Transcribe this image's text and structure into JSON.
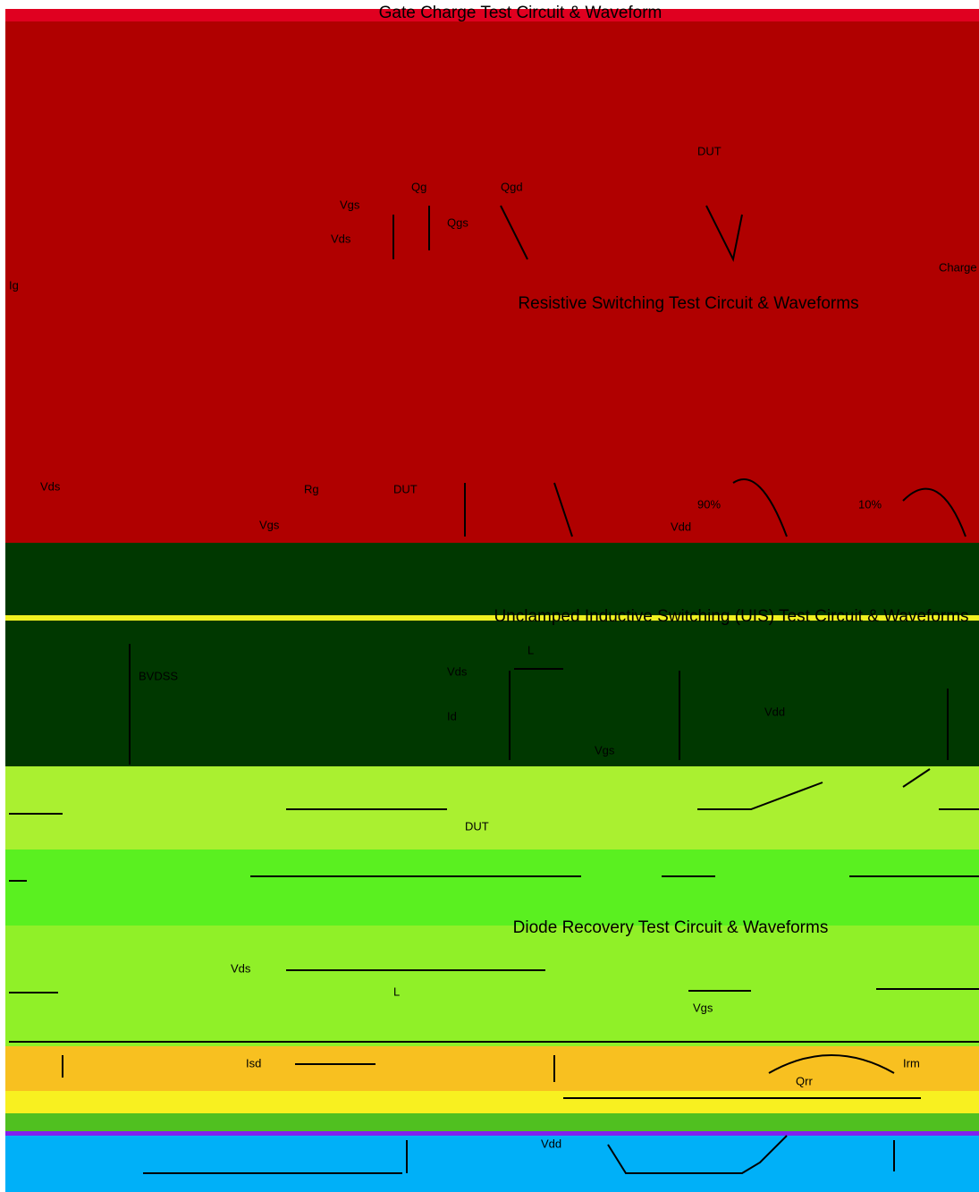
{
  "sections": [
    {
      "title": "Gate Charge Test Circuit & Waveform",
      "labels": [
        "Vgs",
        "Qg",
        "Qgs",
        "Qgd",
        "Vds",
        "DUT",
        "Ig",
        "Charge"
      ]
    },
    {
      "title": "Resistive Switching Test Circuit & Waveforms",
      "labels": [
        "Vds",
        "Vgs",
        "Rg",
        "DUT",
        "Vdd",
        "90%",
        "10%"
      ]
    },
    {
      "title": "Unclamped Inductive Switching (UIS) Test Circuit & Waveforms",
      "labels": [
        "BVDSS",
        "Vds",
        "Id",
        "Vgs",
        "L",
        "Vdd",
        "DUT"
      ]
    },
    {
      "title": "Diode Recovery Test Circuit & Waveforms",
      "labels": [
        "Vds",
        "Vgs",
        "Isd",
        "L",
        "Vdd",
        "Irm",
        "Qrr"
      ]
    }
  ]
}
